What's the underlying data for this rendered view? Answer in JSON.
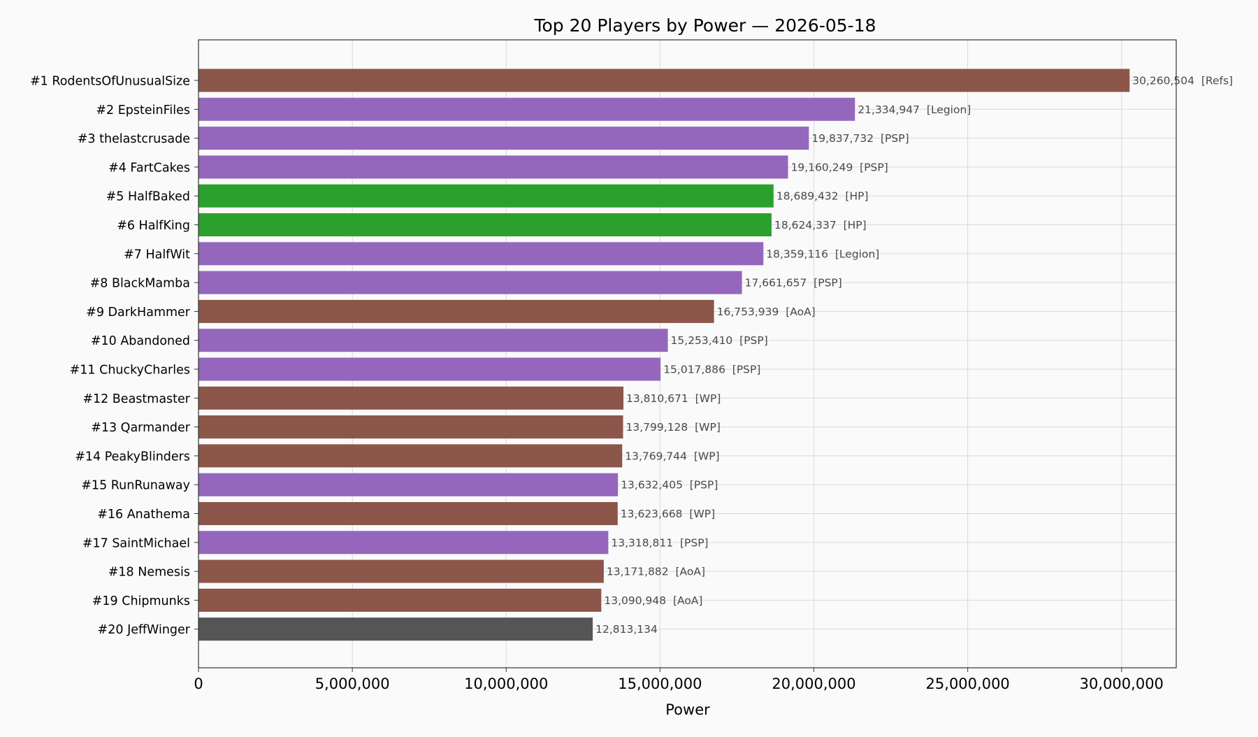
{
  "chart_data": {
    "type": "bar",
    "orientation": "horizontal",
    "title": "Top 20 Players by Power — 2026-05-18",
    "xlabel": "Power",
    "ylabel": "",
    "xlim": [
      0,
      31776000
    ],
    "xticks": [
      0,
      5000000,
      10000000,
      15000000,
      20000000,
      25000000,
      30000000
    ],
    "xtick_labels": [
      "0",
      "5,000,000",
      "10,000,000",
      "15,000,000",
      "20,000,000",
      "25,000,000",
      "30,000,000"
    ],
    "grid": true,
    "bars": [
      {
        "label": "#1 RodentsOfUnusualSize",
        "value": 30260504,
        "value_label": "30,260,504",
        "tag": "[Refs]",
        "color": "#8c564b"
      },
      {
        "label": "#2 EpsteinFiles",
        "value": 21334947,
        "value_label": "21,334,947",
        "tag": "[Legion]",
        "color": "#9467bd"
      },
      {
        "label": "#3 thelastcrusade",
        "value": 19837732,
        "value_label": "19,837,732",
        "tag": "[PSP]",
        "color": "#9467bd"
      },
      {
        "label": "#4 FartCakes",
        "value": 19160249,
        "value_label": "19,160,249",
        "tag": "[PSP]",
        "color": "#9467bd"
      },
      {
        "label": "#5 HalfBaked",
        "value": 18689432,
        "value_label": "18,689,432",
        "tag": "[HP]",
        "color": "#2ca02c"
      },
      {
        "label": "#6 HalfKing",
        "value": 18624337,
        "value_label": "18,624,337",
        "tag": "[HP]",
        "color": "#2ca02c"
      },
      {
        "label": "#7 HalfWit",
        "value": 18359116,
        "value_label": "18,359,116",
        "tag": "[Legion]",
        "color": "#9467bd"
      },
      {
        "label": "#8 BlackMamba",
        "value": 17661657,
        "value_label": "17,661,657",
        "tag": "[PSP]",
        "color": "#9467bd"
      },
      {
        "label": "#9 DarkHammer",
        "value": 16753939,
        "value_label": "16,753,939",
        "tag": "[AoA]",
        "color": "#8c564b"
      },
      {
        "label": "#10 Abandoned",
        "value": 15253410,
        "value_label": "15,253,410",
        "tag": "[PSP]",
        "color": "#9467bd"
      },
      {
        "label": "#11 ChuckyCharles",
        "value": 15017886,
        "value_label": "15,017,886",
        "tag": "[PSP]",
        "color": "#9467bd"
      },
      {
        "label": "#12 Beastmaster",
        "value": 13810671,
        "value_label": "13,810,671",
        "tag": "[WP]",
        "color": "#8c564b"
      },
      {
        "label": "#13 Qarmander",
        "value": 13799128,
        "value_label": "13,799,128",
        "tag": "[WP]",
        "color": "#8c564b"
      },
      {
        "label": "#14 PeakyBlinders",
        "value": 13769744,
        "value_label": "13,769,744",
        "tag": "[WP]",
        "color": "#8c564b"
      },
      {
        "label": "#15 RunRunaway",
        "value": 13632405,
        "value_label": "13,632,405",
        "tag": "[PSP]",
        "color": "#9467bd"
      },
      {
        "label": "#16 Anathema",
        "value": 13623668,
        "value_label": "13,623,668",
        "tag": "[WP]",
        "color": "#8c564b"
      },
      {
        "label": "#17 SaintMichael",
        "value": 13318811,
        "value_label": "13,318,811",
        "tag": "[PSP]",
        "color": "#9467bd"
      },
      {
        "label": "#18 Nemesis",
        "value": 13171882,
        "value_label": "13,171,882",
        "tag": "[AoA]",
        "color": "#8c564b"
      },
      {
        "label": "#19 Chipmunks",
        "value": 13090948,
        "value_label": "13,090,948",
        "tag": "[AoA]",
        "color": "#8c564b"
      },
      {
        "label": "#20 JeffWinger",
        "value": 12813134,
        "value_label": "12,813,134",
        "tag": "",
        "color": "#555555"
      }
    ]
  }
}
